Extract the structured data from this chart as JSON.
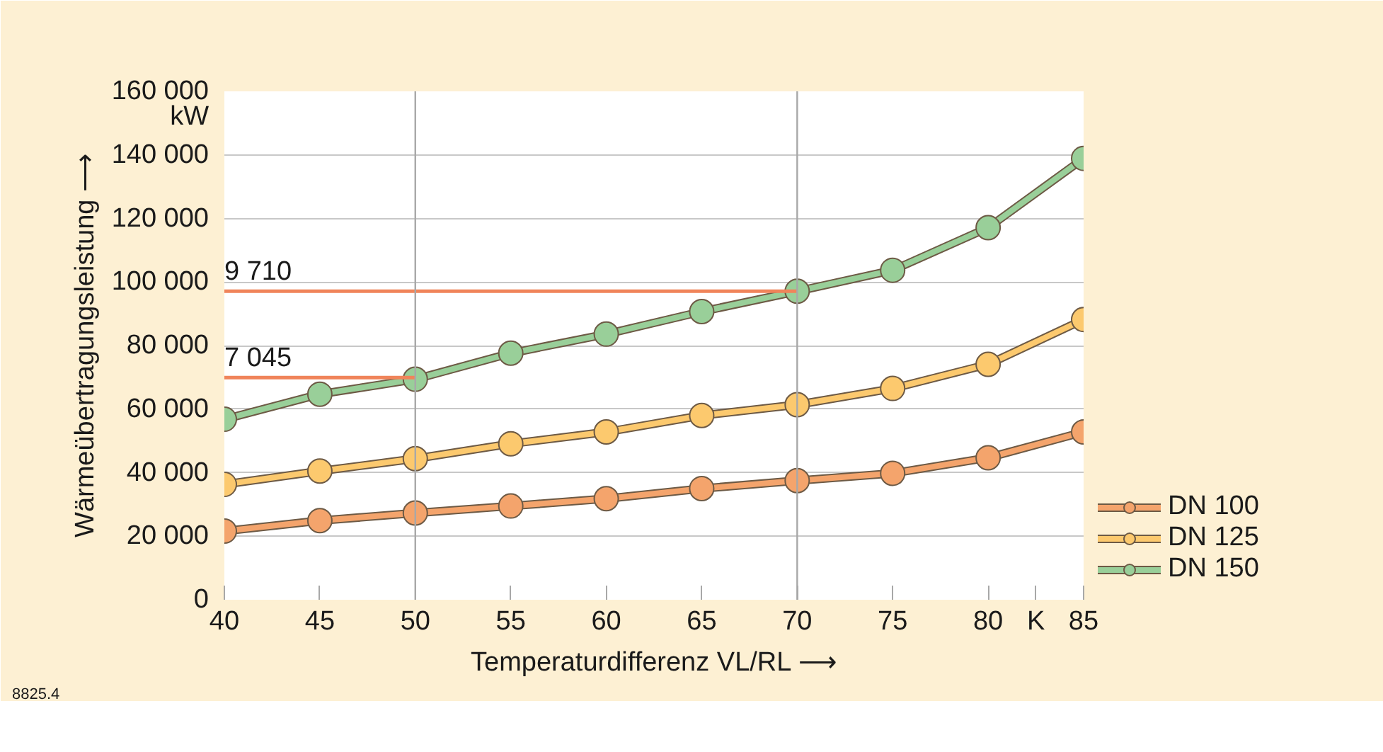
{
  "chart_data": {
    "type": "line",
    "xlabel": "Temperaturdifferenz VL/RL ⟶",
    "ylabel": "Wärmeübertragungsleistung ⟶",
    "x": [
      40,
      45,
      50,
      55,
      60,
      65,
      70,
      75,
      80,
      85
    ],
    "series": [
      {
        "name": "DN 100",
        "color": "#f4a46c",
        "values": [
          21600,
          24900,
          27300,
          29500,
          31800,
          35000,
          37500,
          39800,
          44700,
          52800
        ]
      },
      {
        "name": "DN 125",
        "color": "#fcc96e",
        "values": [
          36300,
          40500,
          44400,
          49100,
          52800,
          58000,
          61400,
          66500,
          74100,
          88200
        ]
      },
      {
        "name": "DN 150",
        "color": "#99cf99",
        "values": [
          56800,
          64700,
          69400,
          77600,
          83600,
          90700,
          97100,
          103700,
          117100,
          138900
        ]
      },
      {
        "color": "#f0845a",
        "marker": "none",
        "x": [
          40,
          70
        ],
        "values": [
          97100,
          97100
        ]
      },
      {
        "color": "#f0845a",
        "marker": "none",
        "x": [
          40,
          50
        ],
        "values": [
          69900,
          69900
        ]
      }
    ],
    "annotations": [
      {
        "text": "9 710",
        "x": 40,
        "y": 97100
      },
      {
        "text": "7 045",
        "x": 40,
        "y": 69900
      },
      "8825.4"
    ],
    "xlim": [
      40,
      85
    ],
    "ylim": [
      0,
      160000
    ],
    "xticks": [
      40,
      45,
      50,
      55,
      60,
      65,
      70,
      75,
      80,
      {
        "value": 82.5,
        "label": "K"
      },
      85
    ],
    "yticks": [
      0,
      {
        "value": 20000,
        "label": "20 000"
      },
      {
        "value": 40000,
        "label": "40 000"
      },
      {
        "value": 60000,
        "label": "60 000"
      },
      {
        "value": 80000,
        "label": "80 000"
      },
      {
        "value": 100000,
        "label": "100 000"
      },
      {
        "value": 120000,
        "label": "120 000"
      },
      {
        "value": 140000,
        "label": "140 000"
      },
      {
        "value": 152000,
        "label": "kW"
      },
      {
        "value": 160000,
        "label": "160 000"
      }
    ],
    "ref_lines": [
      {
        "axis": "x",
        "value": 50,
        "color": "#a8a8a8"
      },
      {
        "axis": "x",
        "value": 70,
        "color": "#a8a8a8"
      }
    ],
    "grid": "y",
    "legend": "bottom right",
    "marker": "circle",
    "line_style": "solid"
  }
}
